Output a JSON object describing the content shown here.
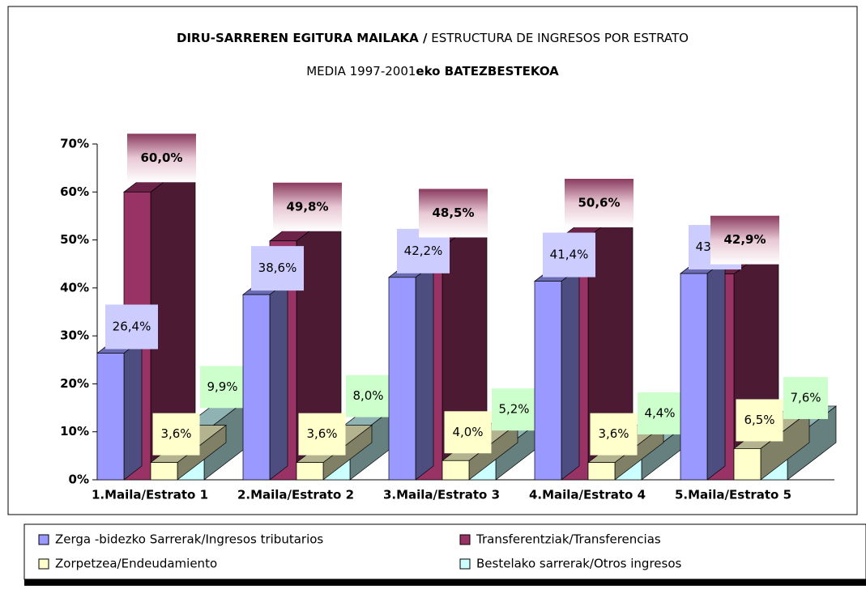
{
  "chart_data": {
    "type": "bar3d",
    "title": [
      "DIRU-SARREREN EGITURA MAILAKA /",
      " ESTRUCTURA DE INGRESOS POR ESTRATO"
    ],
    "subtitle": [
      "MEDIA 1997-2001",
      "eko BATEZBESTEKOA"
    ],
    "categories": [
      "1.Maila/Estrato 1",
      "2.Maila/Estrato 2",
      "3.Maila/Estrato 3",
      "4.Maila/Estrato 4",
      "5.Maila/Estrato 5"
    ],
    "series": [
      {
        "name": "Zerga -bidezko Sarrerak/Ingresos tributarios",
        "color": "#9999ff",
        "values": [
          26.4,
          38.6,
          42.2,
          41.4,
          43.0
        ],
        "value_labels": [
          "26,4%",
          "38,6%",
          "42,2%",
          "41,4%",
          "43,0%"
        ]
      },
      {
        "name": "Transferentziak/Transferencias",
        "color": "#993366",
        "values": [
          60.0,
          49.8,
          48.5,
          50.6,
          42.9
        ],
        "value_labels": [
          "60,0%",
          "49,8%",
          "48,5%",
          "50,6%",
          "42,9%"
        ]
      },
      {
        "name": "Zorpetzea/Endeudamiento",
        "color": "#ffffcc",
        "values": [
          3.6,
          3.6,
          4.0,
          3.6,
          6.5
        ],
        "value_labels": [
          "3,6%",
          "3,6%",
          "4,0%",
          "3,6%",
          "6,5%"
        ]
      },
      {
        "name": "Bestelako sarrerak/Otros ingresos",
        "color": "#ccffff",
        "values": [
          9.9,
          8.0,
          5.2,
          4.4,
          7.6
        ],
        "value_labels": [
          "9,9%",
          "8,0%",
          "5,2%",
          "4,4%",
          "7,6%"
        ]
      }
    ],
    "ylim": [
      0,
      70
    ],
    "yticks": [
      {
        "value": 0,
        "label": "0%"
      },
      {
        "value": 10,
        "label": "10%"
      },
      {
        "value": 20,
        "label": "20%"
      },
      {
        "value": 30,
        "label": "30%"
      },
      {
        "value": 40,
        "label": "40%"
      },
      {
        "value": 50,
        "label": "50%"
      },
      {
        "value": 60,
        "label": "60%"
      },
      {
        "value": 70,
        "label": "70%"
      }
    ]
  }
}
